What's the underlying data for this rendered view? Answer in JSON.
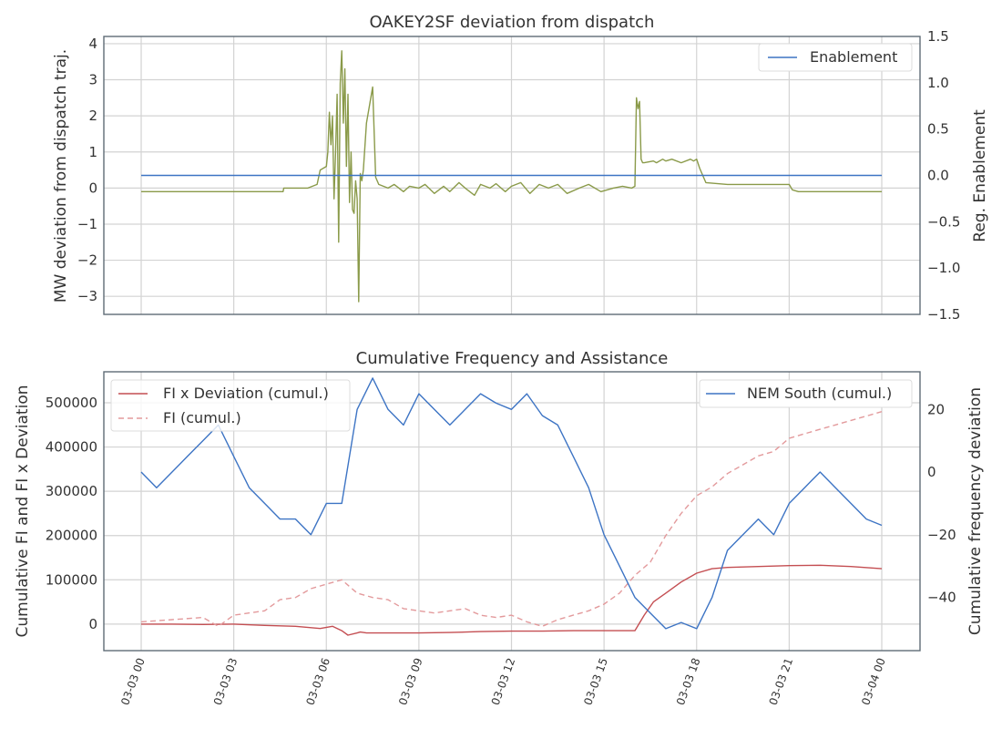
{
  "chart_data": [
    {
      "type": "line",
      "title": "OAKEY2SF deviation from dispatch",
      "ylabel": "MW deviation from dispatch traj.",
      "y2label": "Reg. Enablement",
      "ylim": [
        -3.5,
        4.2
      ],
      "y2lim": [
        -1.5,
        1.5
      ],
      "yticks": [
        -3,
        -2,
        -1,
        0,
        1,
        2,
        3,
        4
      ],
      "y2ticks": [
        -1.5,
        -1.0,
        -0.5,
        0.0,
        0.5,
        1.0,
        1.5
      ],
      "ytick_labels": [
        "−3",
        "−2",
        "−1",
        "0",
        "1",
        "2",
        "3",
        "4"
      ],
      "y2tick_labels": [
        "−1.5",
        "−1.0",
        "−0.5",
        "0.0",
        "0.5",
        "1.0",
        "1.5"
      ],
      "legend_position": "top-right",
      "grid": true,
      "series": [
        {
          "name": "",
          "axis": "left",
          "color": "#8a9a49",
          "x_hours": [
            0,
            4.6,
            4.62,
            5.0,
            5.4,
            5.7,
            5.8,
            6.0,
            6.05,
            6.1,
            6.15,
            6.2,
            6.25,
            6.3,
            6.35,
            6.4,
            6.45,
            6.5,
            6.55,
            6.6,
            6.65,
            6.7,
            6.75,
            6.8,
            6.85,
            6.9,
            6.95,
            7.0,
            7.05,
            7.1,
            7.15,
            7.2,
            7.3,
            7.5,
            7.6,
            7.7,
            8.0,
            8.2,
            8.5,
            8.7,
            9.0,
            9.2,
            9.5,
            9.8,
            10.0,
            10.3,
            10.5,
            10.8,
            11.0,
            11.3,
            11.5,
            11.8,
            12.0,
            12.3,
            12.6,
            12.9,
            13.2,
            13.5,
            13.8,
            14.2,
            14.5,
            14.9,
            15.3,
            15.6,
            15.9,
            16.0,
            16.05,
            16.1,
            16.15,
            16.2,
            16.25,
            16.3,
            16.6,
            16.7,
            16.9,
            17.0,
            17.2,
            17.5,
            17.8,
            17.9,
            18.0,
            18.1,
            18.3,
            19.0,
            20.0,
            21.0,
            21.1,
            21.3,
            22.0,
            23.0,
            24.0
          ],
          "y": [
            -0.1,
            -0.1,
            0.0,
            0.0,
            0.0,
            0.1,
            0.5,
            0.6,
            1.0,
            2.1,
            1.2,
            2.0,
            -0.3,
            1.0,
            2.6,
            -1.5,
            2.9,
            3.8,
            1.8,
            3.3,
            0.6,
            2.6,
            -0.4,
            1.0,
            -0.6,
            -0.7,
            0.2,
            -0.3,
            -3.15,
            0.4,
            0.2,
            0.5,
            1.8,
            2.8,
            0.3,
            0.1,
            0.0,
            0.1,
            -0.1,
            0.05,
            0.0,
            0.1,
            -0.15,
            0.05,
            -0.1,
            0.15,
            0.0,
            -0.2,
            0.1,
            0.0,
            0.12,
            -0.1,
            0.05,
            0.15,
            -0.15,
            0.1,
            0.0,
            0.1,
            -0.15,
            0.0,
            0.1,
            -0.1,
            0.0,
            0.05,
            0.0,
            0.05,
            2.5,
            2.2,
            2.4,
            0.8,
            0.7,
            0.7,
            0.75,
            0.7,
            0.8,
            0.75,
            0.8,
            0.7,
            0.8,
            0.75,
            0.8,
            0.55,
            0.15,
            0.1,
            0.1,
            0.1,
            -0.05,
            -0.1,
            -0.1,
            -0.1,
            -0.1
          ]
        },
        {
          "name": "Enablement",
          "axis": "right",
          "color": "#3d74c4",
          "x_hours": [
            0,
            24
          ],
          "y": [
            0.0,
            0.0
          ]
        }
      ]
    },
    {
      "type": "line",
      "title": "Cumulative Frequency and Assistance",
      "ylabel": "Cumulative FI and FI x Deviation",
      "y2label": "Cumulative frequency deviation",
      "ylim": [
        -60000,
        570000
      ],
      "y2lim": [
        -57,
        32
      ],
      "yticks": [
        0,
        100000,
        200000,
        300000,
        400000,
        500000
      ],
      "y2ticks": [
        -40,
        -20,
        0,
        20
      ],
      "ytick_labels": [
        "0",
        "100000",
        "200000",
        "300000",
        "400000",
        "500000"
      ],
      "y2tick_labels": [
        "−40",
        "−20",
        "0",
        "20"
      ],
      "legend_positions": [
        "top-left",
        "top-right"
      ],
      "grid": true,
      "x_ticks": [
        "03-03 00",
        "03-03 03",
        "03-03 06",
        "03-03 09",
        "03-03 12",
        "03-03 15",
        "03-03 18",
        "03-03 21",
        "03-04 00"
      ],
      "series": [
        {
          "name": "FI x Deviation (cumul.)",
          "axis": "left",
          "color": "#c44e52",
          "style": "solid",
          "x_hours": [
            0,
            1,
            2,
            3,
            4,
            5,
            5.8,
            6.2,
            6.5,
            6.7,
            7.0,
            7.1,
            7.3,
            8,
            9,
            10,
            11,
            12,
            13,
            14,
            15,
            15.5,
            16,
            16.3,
            16.6,
            17,
            17.5,
            18,
            18.5,
            19,
            20,
            21,
            22,
            23,
            24
          ],
          "y": [
            0,
            0,
            -1000,
            0,
            -3000,
            -5000,
            -10000,
            -5000,
            -15000,
            -25000,
            -20000,
            -18000,
            -20000,
            -20000,
            -20000,
            -19000,
            -17000,
            -16000,
            -16000,
            -15000,
            -15000,
            -15000,
            -15000,
            20000,
            50000,
            70000,
            95000,
            115000,
            125000,
            128000,
            130000,
            132000,
            133000,
            130000,
            125000
          ]
        },
        {
          "name": "FI (cumul.)",
          "axis": "left",
          "color": "#e39a9c",
          "style": "dashed",
          "x_hours": [
            0,
            1,
            2,
            2.5,
            3,
            4,
            4.5,
            5,
            5.5,
            6,
            6.5,
            7,
            7.5,
            8,
            8.5,
            9,
            9.5,
            10,
            10.5,
            11,
            11.5,
            12,
            12.5,
            13,
            13.5,
            14,
            14.5,
            15,
            15.5,
            16,
            16.5,
            17,
            17.5,
            18,
            18.5,
            19,
            19.5,
            20,
            20.5,
            21,
            21.5,
            22,
            22.5,
            23,
            23.5,
            24
          ],
          "y": [
            5000,
            10000,
            15000,
            -5000,
            20000,
            30000,
            55000,
            60000,
            80000,
            90000,
            100000,
            70000,
            60000,
            55000,
            35000,
            30000,
            25000,
            30000,
            35000,
            20000,
            15000,
            20000,
            5000,
            -5000,
            10000,
            20000,
            30000,
            45000,
            70000,
            110000,
            140000,
            200000,
            250000,
            290000,
            310000,
            340000,
            360000,
            380000,
            390000,
            420000,
            430000,
            440000,
            450000,
            460000,
            470000,
            480000
          ]
        },
        {
          "name": "NEM South (cumul.)",
          "axis": "right",
          "color": "#3d74c4",
          "style": "solid",
          "x_hours": [
            0,
            0.5,
            1,
            1.5,
            2,
            2.5,
            3,
            3.5,
            4,
            4.5,
            5,
            5.5,
            6,
            6.5,
            7,
            7.5,
            8,
            8.5,
            9,
            9.5,
            10,
            10.5,
            11,
            11.5,
            12,
            12.5,
            13,
            13.5,
            14,
            14.5,
            15,
            15.5,
            16,
            16.5,
            17,
            17.5,
            18,
            18.5,
            19,
            19.5,
            20,
            20.5,
            21,
            21.5,
            22,
            22.5,
            23,
            23.5,
            24
          ],
          "y": [
            0,
            -5,
            0,
            5,
            10,
            15,
            5,
            -5,
            -10,
            -15,
            -15,
            -20,
            -10,
            -10,
            20,
            30,
            20,
            15,
            25,
            20,
            15,
            20,
            25,
            22,
            20,
            25,
            18,
            15,
            5,
            -5,
            -20,
            -30,
            -40,
            -45,
            -50,
            -48,
            -50,
            -40,
            -25,
            -20,
            -15,
            -20,
            -10,
            -5,
            0,
            -5,
            -10,
            -15,
            -17
          ]
        }
      ]
    }
  ]
}
